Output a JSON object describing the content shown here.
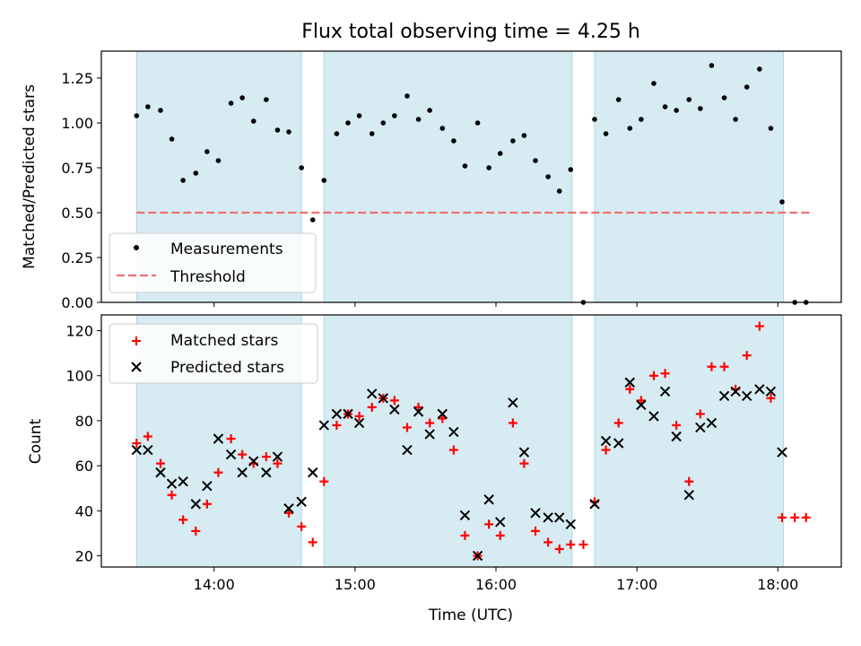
{
  "title": "Flux total observing time = 4.25 h",
  "x_ticks": [
    "14:00",
    "15:00",
    "16:00",
    "17:00",
    "18:00"
  ],
  "colors": {
    "band": "#add8e6",
    "matched": "#ff0000",
    "predicted": "#000000",
    "threshold": "#f07070",
    "measurement": "#000000"
  },
  "chart_data": [
    {
      "type": "scatter",
      "ylabel": "Matched/Predicted stars",
      "xlim": [
        13.2,
        18.45
      ],
      "ylim": [
        0,
        1.4
      ],
      "y_ticks": [
        "0.00",
        "0.25",
        "0.50",
        "0.75",
        "1.00",
        "1.25"
      ],
      "x_ticks_shown": false,
      "grid": false,
      "legend_position": "lower-left",
      "legend": [
        "Measurements",
        "Threshold"
      ],
      "observing_windows": [
        [
          13.45,
          14.62
        ],
        [
          14.78,
          16.54
        ],
        [
          16.7,
          18.04
        ]
      ],
      "threshold": 0.5,
      "series": [
        {
          "name": "Measurements",
          "x": [
            13.45,
            13.53,
            13.62,
            13.7,
            13.78,
            13.87,
            13.95,
            14.03,
            14.12,
            14.2,
            14.28,
            14.37,
            14.45,
            14.53,
            14.62,
            14.7,
            14.78,
            14.87,
            14.95,
            15.03,
            15.12,
            15.2,
            15.28,
            15.37,
            15.45,
            15.53,
            15.62,
            15.7,
            15.78,
            15.87,
            15.95,
            16.03,
            16.12,
            16.2,
            16.28,
            16.37,
            16.45,
            16.53,
            16.62,
            16.7,
            16.78,
            16.87,
            16.95,
            17.03,
            17.12,
            17.2,
            17.28,
            17.37,
            17.45,
            17.53,
            17.62,
            17.7,
            17.78,
            17.87,
            17.95,
            18.03,
            18.12,
            18.2
          ],
          "y": [
            1.04,
            1.09,
            1.07,
            0.91,
            0.68,
            0.72,
            0.84,
            0.79,
            1.11,
            1.14,
            1.01,
            1.13,
            0.96,
            0.95,
            0.75,
            0.46,
            0.68,
            0.94,
            1.0,
            1.04,
            0.94,
            1.0,
            1.04,
            1.15,
            1.02,
            1.07,
            0.97,
            0.9,
            0.76,
            1.0,
            0.75,
            0.83,
            0.9,
            0.93,
            0.79,
            0.7,
            0.62,
            0.74,
            0.0,
            1.02,
            0.94,
            1.13,
            0.97,
            1.02,
            1.22,
            1.09,
            1.07,
            1.13,
            1.08,
            1.32,
            1.14,
            1.02,
            1.2,
            1.3,
            0.97,
            0.56,
            0.0,
            0.0
          ]
        }
      ]
    },
    {
      "type": "scatter",
      "ylabel": "Count",
      "xlabel": "Time (UTC)",
      "xlim": [
        13.2,
        18.45
      ],
      "ylim": [
        15,
        127
      ],
      "y_ticks": [
        "20",
        "40",
        "60",
        "80",
        "100",
        "120"
      ],
      "grid": false,
      "legend_position": "upper-left",
      "legend": [
        "Matched stars",
        "Predicted stars"
      ],
      "observing_windows": [
        [
          13.45,
          14.62
        ],
        [
          14.78,
          16.54
        ],
        [
          16.7,
          18.04
        ]
      ],
      "series": [
        {
          "name": "Matched stars",
          "x": [
            13.45,
            13.53,
            13.62,
            13.7,
            13.78,
            13.87,
            13.95,
            14.03,
            14.12,
            14.2,
            14.28,
            14.37,
            14.45,
            14.53,
            14.62,
            14.7,
            14.78,
            14.87,
            14.95,
            15.03,
            15.12,
            15.2,
            15.28,
            15.37,
            15.45,
            15.53,
            15.62,
            15.7,
            15.78,
            15.87,
            15.95,
            16.03,
            16.12,
            16.2,
            16.28,
            16.37,
            16.45,
            16.53,
            16.62,
            16.7,
            16.78,
            16.87,
            16.95,
            17.03,
            17.12,
            17.2,
            17.28,
            17.37,
            17.45,
            17.53,
            17.62,
            17.7,
            17.78,
            17.87,
            17.95,
            18.03,
            18.12,
            18.2
          ],
          "y": [
            70,
            73,
            61,
            47,
            36,
            31,
            43,
            57,
            72,
            65,
            61,
            64,
            61,
            39,
            33,
            26,
            53,
            78,
            83,
            82,
            86,
            90,
            89,
            77,
            86,
            79,
            81,
            67,
            29,
            20,
            34,
            29,
            79,
            61,
            31,
            26,
            23,
            25,
            25,
            44,
            67,
            79,
            94,
            89,
            100,
            101,
            78,
            53,
            83,
            104,
            104,
            94,
            109,
            122,
            90,
            37,
            37,
            37
          ]
        },
        {
          "name": "Predicted stars",
          "x": [
            13.45,
            13.53,
            13.62,
            13.7,
            13.78,
            13.87,
            13.95,
            14.03,
            14.12,
            14.2,
            14.28,
            14.37,
            14.45,
            14.53,
            14.62,
            14.7,
            14.78,
            14.87,
            14.95,
            15.03,
            15.12,
            15.2,
            15.28,
            15.37,
            15.45,
            15.53,
            15.62,
            15.7,
            15.78,
            15.87,
            15.95,
            16.03,
            16.12,
            16.2,
            16.28,
            16.37,
            16.45,
            16.53,
            16.7,
            16.78,
            16.87,
            16.95,
            17.03,
            17.12,
            17.2,
            17.28,
            17.37,
            17.45,
            17.53,
            17.62,
            17.7,
            17.78,
            17.87,
            17.95,
            18.03
          ],
          "y": [
            67,
            67,
            57,
            52,
            53,
            43,
            51,
            72,
            65,
            57,
            62,
            57,
            64,
            41,
            44,
            57,
            78,
            83,
            83,
            79,
            92,
            90,
            85,
            67,
            84,
            74,
            83,
            75,
            38,
            20,
            45,
            35,
            88,
            66,
            39,
            37,
            37,
            34,
            43,
            71,
            70,
            97,
            87,
            82,
            93,
            73,
            47,
            77,
            79,
            91,
            93,
            91,
            94,
            93,
            66
          ]
        }
      ]
    }
  ]
}
